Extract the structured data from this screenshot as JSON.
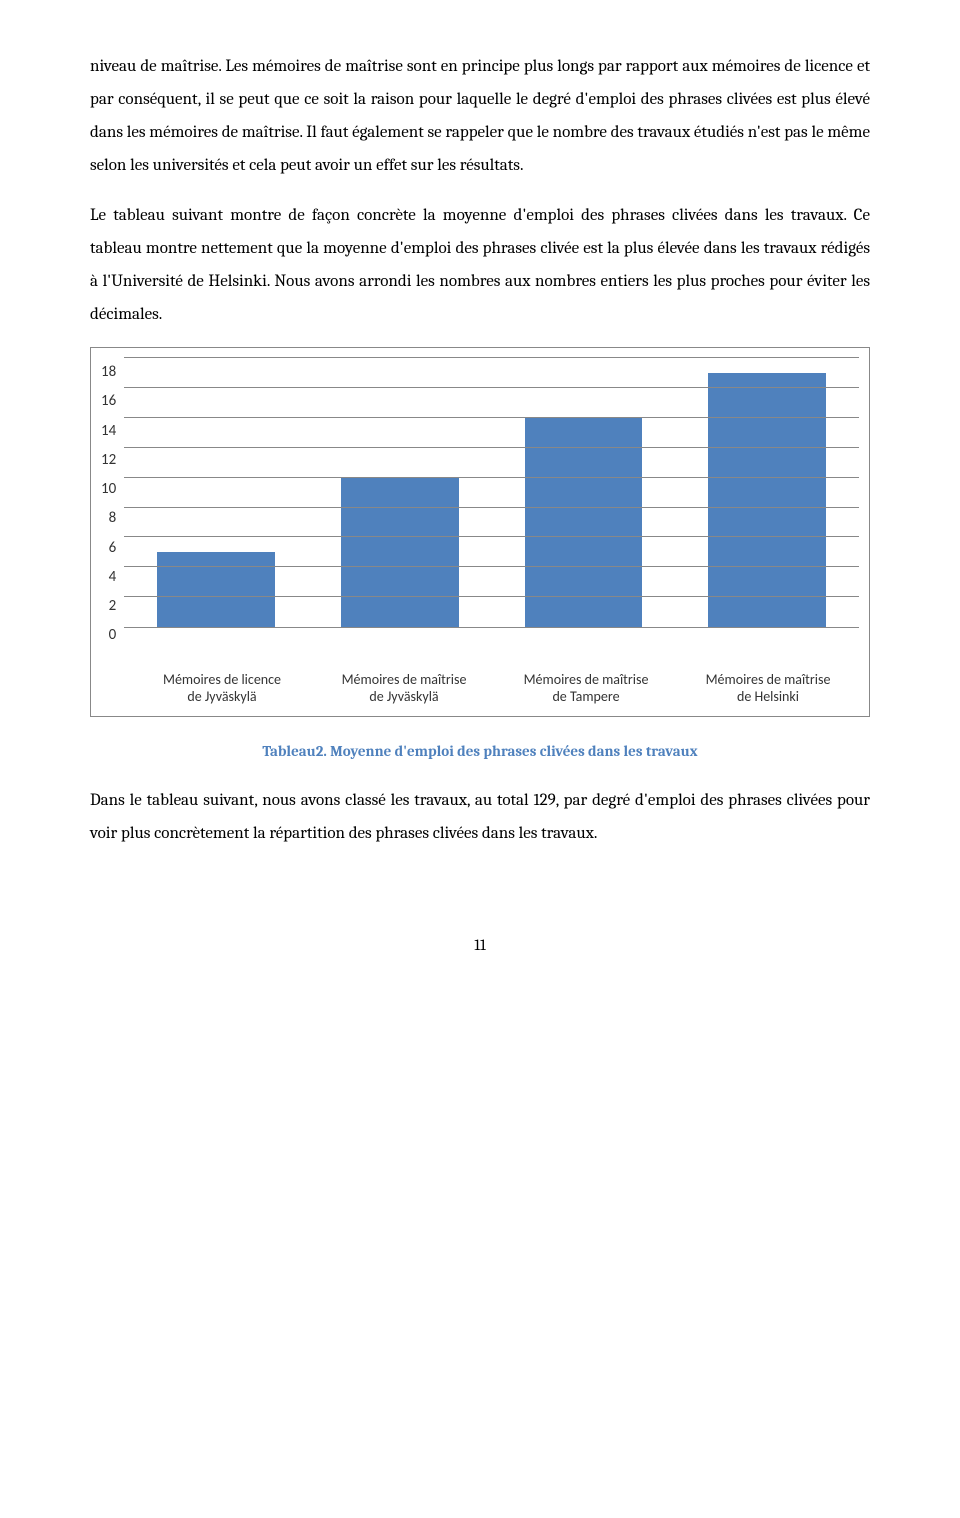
{
  "paragraphs": {
    "p1": "niveau de maîtrise. Les mémoires de maîtrise sont en principe plus longs par rapport aux mémoires de licence et par conséquent, il se peut que ce soit la raison pour laquelle le degré d'emploi des phrases clivées est plus élevé dans les mémoires de maîtrise. Il faut également se rappeler que le nombre des travaux étudiés n'est pas le même selon les universités et cela peut avoir un effet sur les résultats.",
    "p2": "Le tableau suivant montre de façon concrète la moyenne d'emploi des phrases clivées dans les travaux. Ce tableau montre nettement que la moyenne d'emploi des phrases clivée est la plus élevée dans les travaux rédigés à l'Université de Helsinki. Nous avons arrondi les nombres aux nombres entiers les plus proches pour éviter les décimales.",
    "p3": "Dans le tableau suivant, nous avons classé les travaux, au total 129, par degré d'emploi des phrases clivées pour voir plus concrètement la répartition des phrases clivées dans les travaux."
  },
  "chart": {
    "type": "bar",
    "ymax": 18,
    "ytick_step": 2,
    "yticks": [
      "18",
      "16",
      "14",
      "12",
      "10",
      "8",
      "6",
      "4",
      "2",
      "0"
    ],
    "categories": [
      {
        "line1": "Mémoires de licence",
        "line2": "de Jyväskylä"
      },
      {
        "line1": "Mémoires de maîtrise",
        "line2": "de Jyväskylä"
      },
      {
        "line1": "Mémoires de maîtrise",
        "line2": "de Tampere"
      },
      {
        "line1": "Mémoires de maîtrise",
        "line2": "de Helsinki"
      }
    ],
    "values": [
      5,
      10,
      14,
      17
    ],
    "bar_color": "#4f81bd",
    "grid_color": "#888888",
    "background_color": "#ffffff",
    "label_font": "Calibri",
    "label_fontsize": 14,
    "ytick_fontsize": 15,
    "border_color": "#888888"
  },
  "caption": "Tableau2. Moyenne d'emploi des phrases clivées dans les travaux",
  "page_number": "11"
}
